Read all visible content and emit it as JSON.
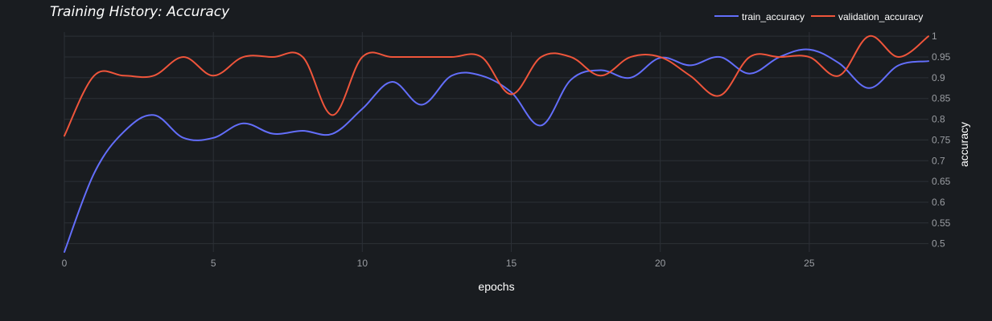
{
  "chart_data": {
    "type": "line",
    "title": "Training History: Accuracy",
    "xlabel": "epochs",
    "ylabel": "accuracy",
    "xlim": [
      0,
      29
    ],
    "ylim": [
      0.48,
      1.01
    ],
    "x_ticks": [
      0,
      5,
      10,
      15,
      20,
      25
    ],
    "y_ticks": [
      0.5,
      0.55,
      0.6,
      0.65,
      0.7,
      0.75,
      0.8,
      0.85,
      0.9,
      0.95,
      1
    ],
    "y_tick_labels": [
      "0.5",
      "0.55",
      "0.6",
      "0.65",
      "0.7",
      "0.75",
      "0.8",
      "0.85",
      "0.9",
      "0.95",
      "1"
    ],
    "y_axis_side": "right",
    "grid": true,
    "legend_position": "top-right",
    "x": [
      0,
      1,
      2,
      3,
      4,
      5,
      6,
      7,
      8,
      9,
      10,
      11,
      12,
      13,
      14,
      15,
      16,
      17,
      18,
      19,
      20,
      21,
      22,
      23,
      24,
      25,
      26,
      27,
      28,
      29
    ],
    "series": [
      {
        "name": "train_accuracy",
        "color": "#636efa",
        "values": [
          0.48,
          0.67,
          0.77,
          0.81,
          0.755,
          0.755,
          0.79,
          0.765,
          0.772,
          0.765,
          0.825,
          0.89,
          0.835,
          0.905,
          0.905,
          0.865,
          0.785,
          0.895,
          0.918,
          0.9,
          0.948,
          0.93,
          0.95,
          0.91,
          0.95,
          0.968,
          0.935,
          0.875,
          0.93,
          0.94
        ]
      },
      {
        "name": "validation_accuracy",
        "color": "#ef553b",
        "values": [
          0.76,
          0.905,
          0.905,
          0.905,
          0.95,
          0.905,
          0.95,
          0.95,
          0.95,
          0.81,
          0.95,
          0.95,
          0.95,
          0.95,
          0.95,
          0.86,
          0.95,
          0.95,
          0.905,
          0.95,
          0.95,
          0.905,
          0.857,
          0.95,
          0.95,
          0.95,
          0.905,
          1.0,
          0.95,
          1.0
        ]
      }
    ]
  }
}
